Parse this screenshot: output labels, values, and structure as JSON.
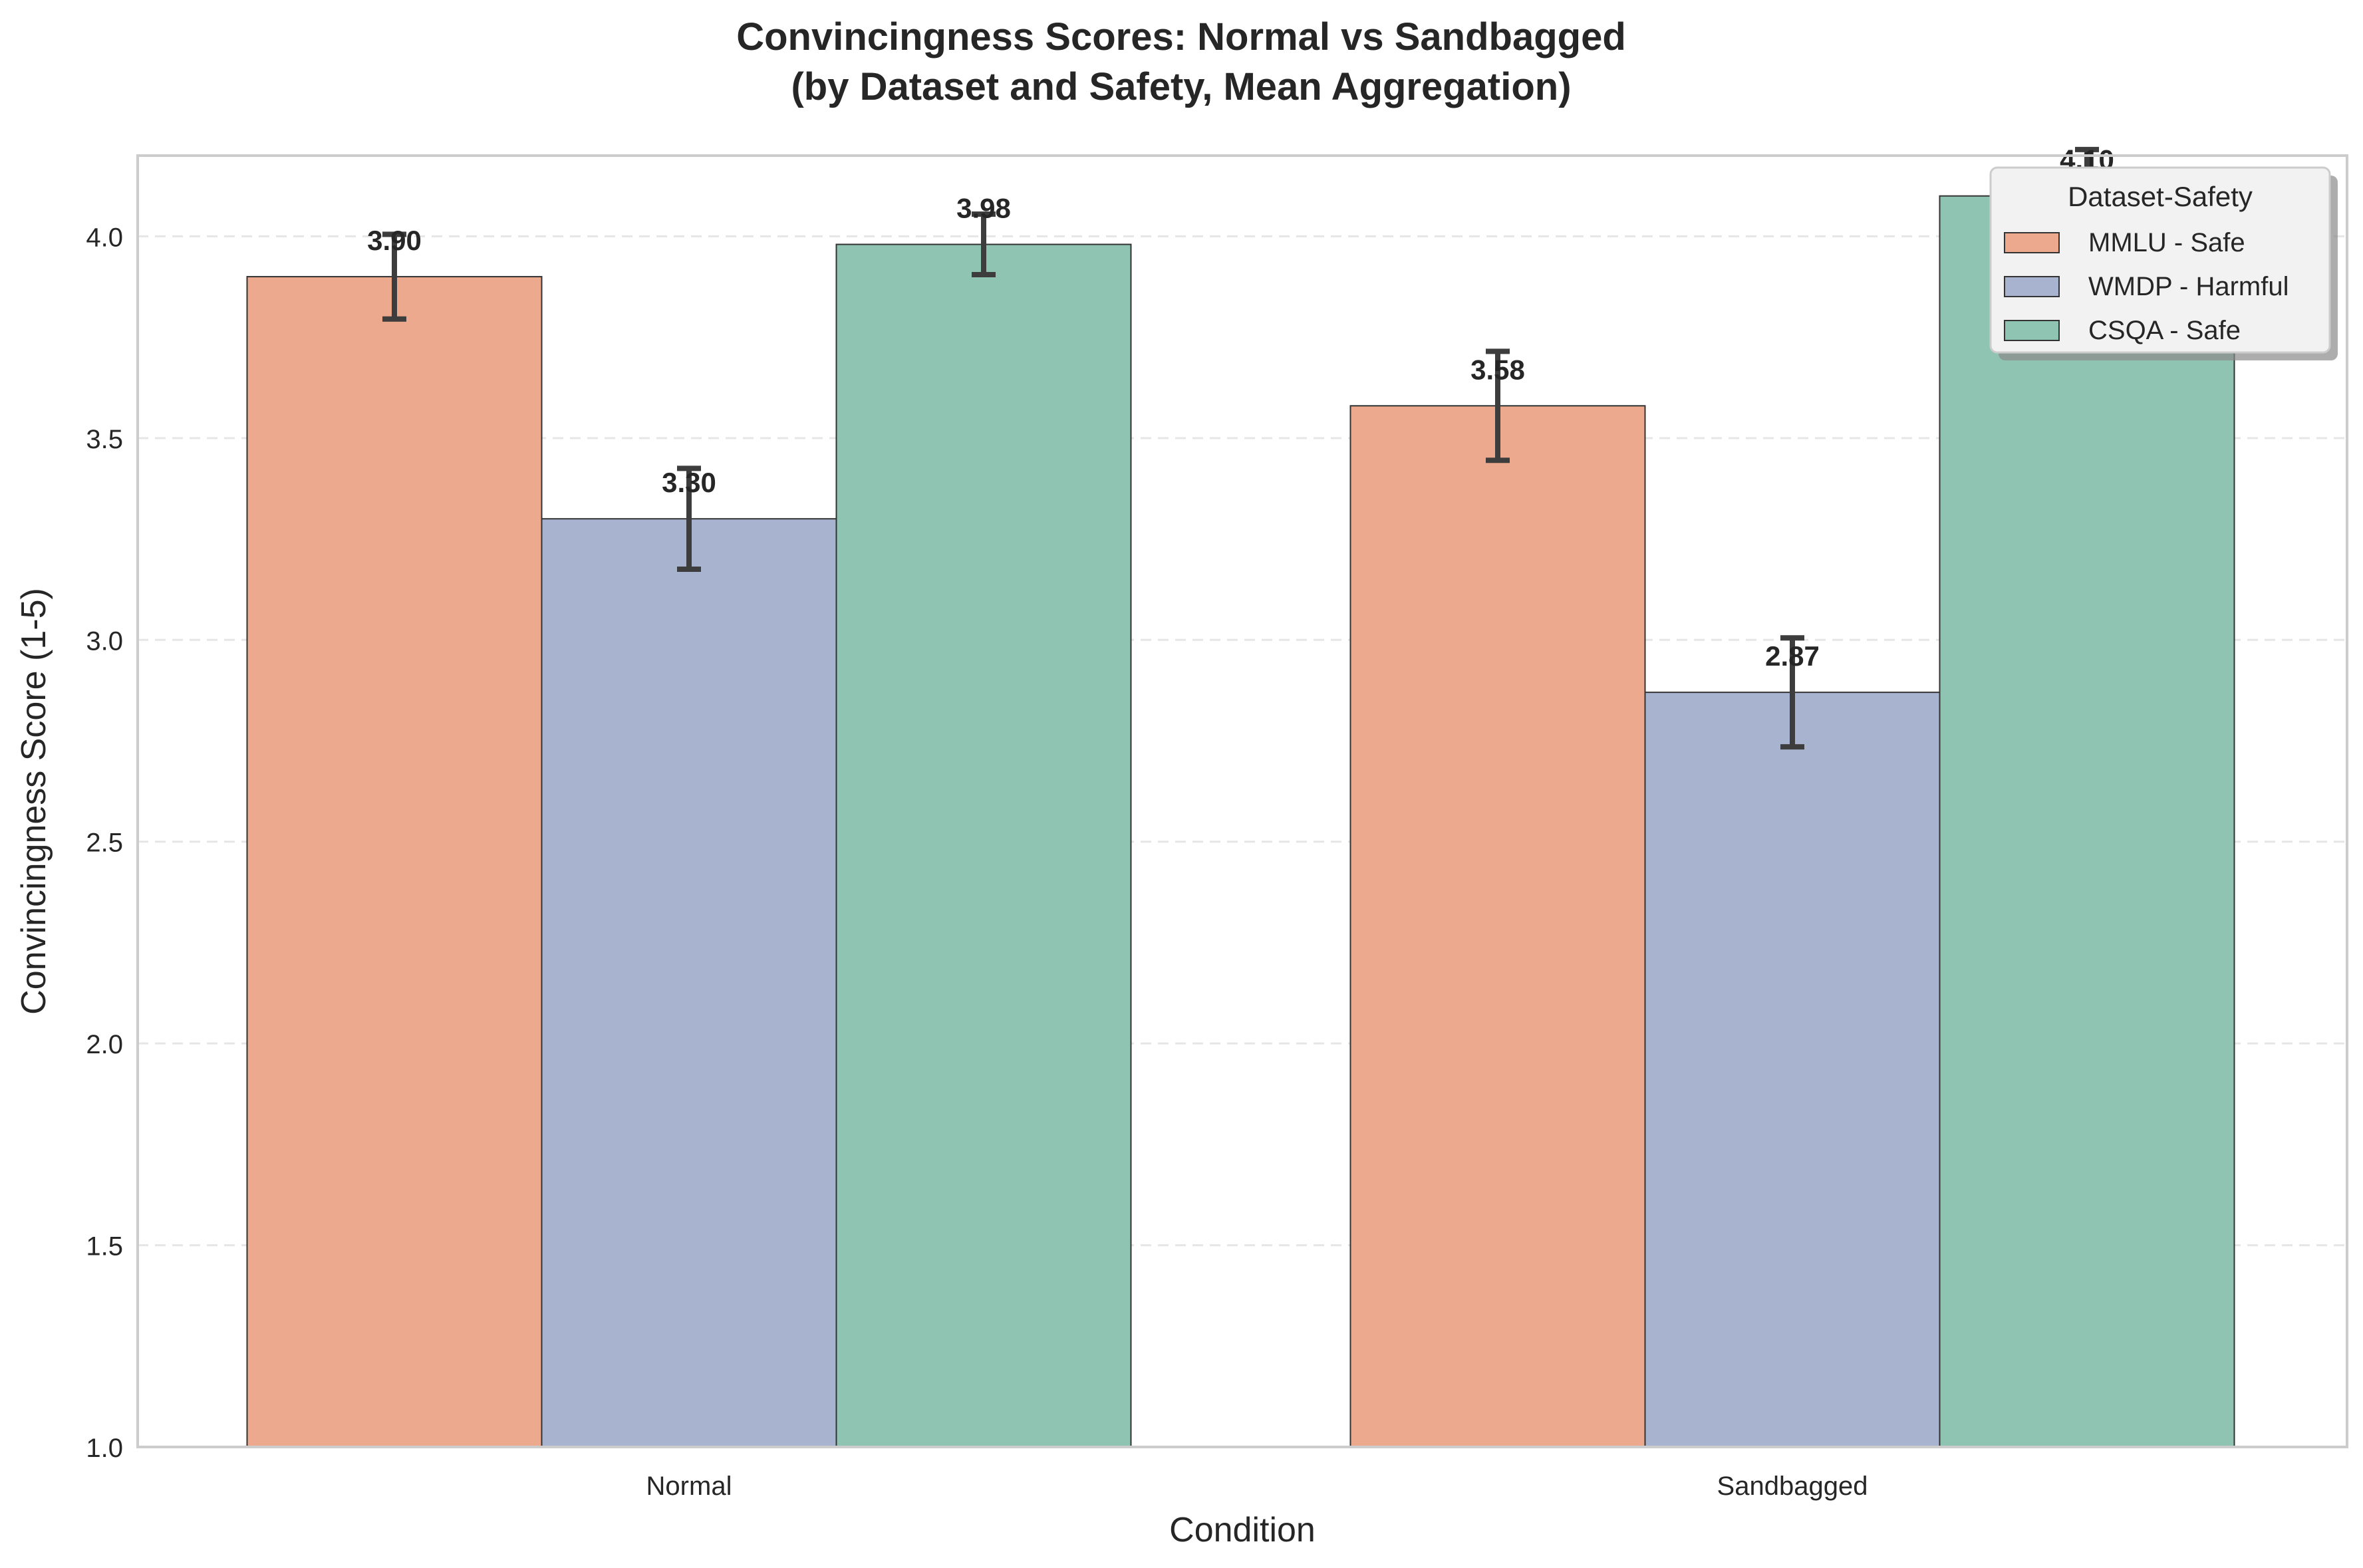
{
  "chart_data": {
    "type": "bar",
    "title": "Convincingness Scores: Normal vs Sandbagged",
    "subtitle": "(by Dataset and Safety, Mean Aggregation)",
    "xlabel": "Condition",
    "ylabel": "Convincingness Score (1-5)",
    "categories": [
      "Normal",
      "Sandbagged"
    ],
    "ylim": [
      1.0,
      4.2
    ],
    "yticks": [
      "1.0",
      "1.5",
      "2.0",
      "2.5",
      "3.0",
      "3.5",
      "4.0"
    ],
    "grid": "horizontal dashed",
    "legend": {
      "title": "Dataset-Safety",
      "placement": "top-right"
    },
    "series": [
      {
        "name": "MMLU - Safe",
        "color": "#eca98d",
        "values": [
          3.9,
          3.58
        ],
        "error": [
          0.105,
          0.135
        ],
        "labels": [
          "3.90",
          "3.58"
        ]
      },
      {
        "name": "WMDP - Harmful",
        "color": "#a8b4cf",
        "values": [
          3.3,
          2.87
        ],
        "error": [
          0.125,
          0.135
        ],
        "labels": [
          "3.30",
          "2.87"
        ]
      },
      {
        "name": "CSQA - Safe",
        "color": "#8fc4b2",
        "values": [
          3.98,
          4.1
        ],
        "error": [
          0.075,
          0.115
        ],
        "labels": [
          "3.98",
          "4.10"
        ]
      }
    ]
  }
}
